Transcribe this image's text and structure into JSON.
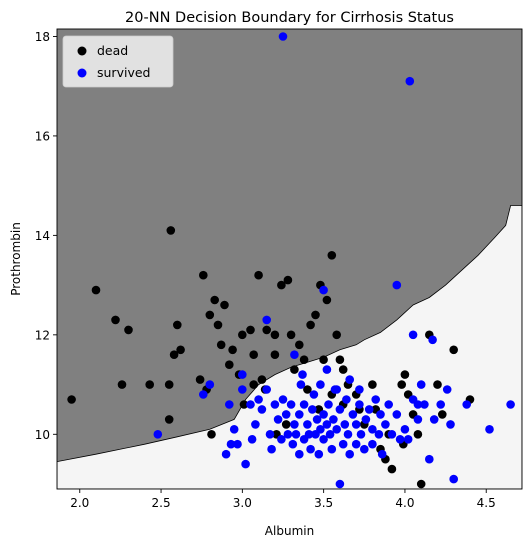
{
  "chart_data": {
    "type": "scatter",
    "title": "20-NN Decision Boundary for Cirrhosis Status",
    "xlabel": "Albumin",
    "ylabel": "Prothrombin",
    "xlim": [
      1.86,
      4.72
    ],
    "ylim": [
      8.9,
      18.15
    ],
    "xticks": [
      "2.0",
      "2.5",
      "3.0",
      "3.5",
      "4.0",
      "4.5"
    ],
    "xtick_values": [
      2.0,
      2.5,
      3.0,
      3.5,
      4.0,
      4.5
    ],
    "yticks": [
      "10",
      "12",
      "14",
      "16",
      "18"
    ],
    "ytick_values": [
      10,
      12,
      14,
      16,
      18
    ],
    "grid": false,
    "legend_position": "top-left",
    "region_colors": {
      "dead": "#808080",
      "survived": "#f5f5f5"
    },
    "boundary": [
      [
        1.86,
        9.45
      ],
      [
        2.1,
        9.6
      ],
      [
        2.4,
        9.8
      ],
      [
        2.6,
        9.95
      ],
      [
        2.8,
        10.1
      ],
      [
        2.95,
        10.3
      ],
      [
        3.02,
        10.7
      ],
      [
        3.1,
        11.0
      ],
      [
        3.2,
        11.2
      ],
      [
        3.3,
        11.35
      ],
      [
        3.4,
        11.45
      ],
      [
        3.5,
        11.55
      ],
      [
        3.6,
        11.7
      ],
      [
        3.7,
        11.8
      ],
      [
        3.75,
        11.9
      ],
      [
        3.85,
        12.05
      ],
      [
        3.95,
        12.3
      ],
      [
        4.05,
        12.6
      ],
      [
        4.15,
        12.75
      ],
      [
        4.25,
        13.0
      ],
      [
        4.35,
        13.3
      ],
      [
        4.45,
        13.6
      ],
      [
        4.55,
        13.95
      ],
      [
        4.62,
        14.2
      ],
      [
        4.65,
        14.6
      ],
      [
        4.72,
        14.6
      ]
    ],
    "series": [
      {
        "name": "dead",
        "color": "#000000",
        "points": [
          [
            1.95,
            10.7
          ],
          [
            2.1,
            12.9
          ],
          [
            2.22,
            12.3
          ],
          [
            2.26,
            11.0
          ],
          [
            2.3,
            12.1
          ],
          [
            2.43,
            11.0
          ],
          [
            2.55,
            11.0
          ],
          [
            2.55,
            10.3
          ],
          [
            2.56,
            14.1
          ],
          [
            2.58,
            11.6
          ],
          [
            2.6,
            12.2
          ],
          [
            2.62,
            11.7
          ],
          [
            2.74,
            11.1
          ],
          [
            2.76,
            13.2
          ],
          [
            2.78,
            10.9
          ],
          [
            2.8,
            12.4
          ],
          [
            2.81,
            10.0
          ],
          [
            2.83,
            12.7
          ],
          [
            2.85,
            12.2
          ],
          [
            2.87,
            11.8
          ],
          [
            2.89,
            12.6
          ],
          [
            2.92,
            11.4
          ],
          [
            2.94,
            11.7
          ],
          [
            2.98,
            11.2
          ],
          [
            3.0,
            12.0
          ],
          [
            3.01,
            10.6
          ],
          [
            3.05,
            12.1
          ],
          [
            3.07,
            11.6
          ],
          [
            3.1,
            13.2
          ],
          [
            3.12,
            11.1
          ],
          [
            3.15,
            12.1
          ],
          [
            3.2,
            11.6
          ],
          [
            3.2,
            12.0
          ],
          [
            3.21,
            10.0
          ],
          [
            3.24,
            13.0
          ],
          [
            3.28,
            13.1
          ],
          [
            3.3,
            12.0
          ],
          [
            3.32,
            11.3
          ],
          [
            3.35,
            11.8
          ],
          [
            3.38,
            11.5
          ],
          [
            3.42,
            12.2
          ],
          [
            3.45,
            12.4
          ],
          [
            3.48,
            13.0
          ],
          [
            3.5,
            11.5
          ],
          [
            3.52,
            12.7
          ],
          [
            3.55,
            13.6
          ],
          [
            3.58,
            12.0
          ],
          [
            3.6,
            11.5
          ],
          [
            3.62,
            11.3
          ],
          [
            3.65,
            11.0
          ],
          [
            3.7,
            10.8
          ],
          [
            3.72,
            10.5
          ],
          [
            3.75,
            10.2
          ],
          [
            3.8,
            11.0
          ],
          [
            3.82,
            10.5
          ],
          [
            3.85,
            9.7
          ],
          [
            3.88,
            9.5
          ],
          [
            3.9,
            10.0
          ],
          [
            3.92,
            9.3
          ],
          [
            3.98,
            11.0
          ],
          [
            3.99,
            9.8
          ],
          [
            4.0,
            11.2
          ],
          [
            4.02,
            10.8
          ],
          [
            4.05,
            10.4
          ],
          [
            4.08,
            10.0
          ],
          [
            4.1,
            9.0
          ],
          [
            4.15,
            12.0
          ],
          [
            4.2,
            11.0
          ],
          [
            4.23,
            10.4
          ],
          [
            4.3,
            11.7
          ],
          [
            4.4,
            10.7
          ],
          [
            3.07,
            11.0
          ],
          [
            3.14,
            10.9
          ],
          [
            3.4,
            10.9
          ],
          [
            3.47,
            10.5
          ],
          [
            3.55,
            10.8
          ],
          [
            3.62,
            10.6
          ],
          [
            3.27,
            10.2
          ]
        ]
      },
      {
        "name": "survived",
        "color": "#0000ff",
        "points": [
          [
            3.25,
            18.0
          ],
          [
            4.03,
            17.1
          ],
          [
            3.95,
            13.0
          ],
          [
            3.5,
            12.9
          ],
          [
            3.15,
            12.3
          ],
          [
            3.32,
            11.6
          ],
          [
            4.05,
            12.0
          ],
          [
            4.17,
            11.9
          ],
          [
            2.48,
            10.0
          ],
          [
            2.76,
            10.8
          ],
          [
            2.8,
            11.0
          ],
          [
            2.92,
            10.6
          ],
          [
            2.95,
            10.1
          ],
          [
            2.93,
            9.8
          ],
          [
            2.9,
            9.6
          ],
          [
            2.97,
            9.8
          ],
          [
            3.0,
            10.9
          ],
          [
            3.0,
            11.2
          ],
          [
            3.02,
            9.4
          ],
          [
            3.05,
            10.6
          ],
          [
            3.06,
            9.9
          ],
          [
            3.08,
            10.2
          ],
          [
            3.1,
            10.7
          ],
          [
            3.12,
            10.5
          ],
          [
            3.15,
            10.9
          ],
          [
            3.17,
            10.0
          ],
          [
            3.18,
            9.7
          ],
          [
            3.2,
            10.6
          ],
          [
            3.22,
            10.3
          ],
          [
            3.24,
            9.9
          ],
          [
            3.25,
            10.7
          ],
          [
            3.27,
            10.4
          ],
          [
            3.28,
            10.0
          ],
          [
            3.3,
            10.6
          ],
          [
            3.31,
            9.8
          ],
          [
            3.32,
            10.2
          ],
          [
            3.33,
            10.0
          ],
          [
            3.35,
            10.4
          ],
          [
            3.35,
            9.6
          ],
          [
            3.36,
            11.0
          ],
          [
            3.38,
            10.6
          ],
          [
            3.38,
            9.9
          ],
          [
            3.4,
            10.2
          ],
          [
            3.41,
            10.0
          ],
          [
            3.42,
            9.7
          ],
          [
            3.43,
            10.5
          ],
          [
            3.44,
            10.8
          ],
          [
            3.45,
            10.0
          ],
          [
            3.46,
            10.3
          ],
          [
            3.47,
            9.6
          ],
          [
            3.48,
            11.0
          ],
          [
            3.48,
            10.1
          ],
          [
            3.5,
            10.4
          ],
          [
            3.5,
            9.9
          ],
          [
            3.52,
            10.2
          ],
          [
            3.53,
            10.6
          ],
          [
            3.54,
            10.0
          ],
          [
            3.55,
            9.7
          ],
          [
            3.56,
            10.3
          ],
          [
            3.57,
            10.9
          ],
          [
            3.58,
            10.1
          ],
          [
            3.6,
            10.5
          ],
          [
            3.6,
            9.0
          ],
          [
            3.62,
            9.8
          ],
          [
            3.63,
            10.2
          ],
          [
            3.64,
            10.7
          ],
          [
            3.65,
            10.0
          ],
          [
            3.66,
            9.6
          ],
          [
            3.68,
            10.4
          ],
          [
            3.7,
            10.2
          ],
          [
            3.7,
            9.8
          ],
          [
            3.72,
            10.6
          ],
          [
            3.73,
            10.0
          ],
          [
            3.75,
            9.7
          ],
          [
            3.76,
            10.3
          ],
          [
            3.78,
            10.5
          ],
          [
            3.8,
            10.1
          ],
          [
            3.8,
            9.8
          ],
          [
            3.82,
            10.7
          ],
          [
            3.84,
            10.0
          ],
          [
            3.85,
            10.4
          ],
          [
            3.86,
            9.6
          ],
          [
            3.88,
            10.2
          ],
          [
            3.9,
            10.6
          ],
          [
            3.92,
            10.0
          ],
          [
            3.95,
            10.4
          ],
          [
            3.97,
            9.9
          ],
          [
            4.0,
            10.1
          ],
          [
            4.02,
            9.9
          ],
          [
            4.05,
            10.7
          ],
          [
            4.08,
            10.3
          ],
          [
            4.12,
            10.6
          ],
          [
            4.15,
            9.5
          ],
          [
            4.18,
            10.3
          ],
          [
            4.22,
            10.6
          ],
          [
            4.26,
            10.9
          ],
          [
            4.28,
            10.2
          ],
          [
            4.3,
            9.1
          ],
          [
            4.38,
            10.6
          ],
          [
            4.52,
            10.1
          ],
          [
            4.65,
            10.6
          ],
          [
            3.37,
            11.2
          ],
          [
            3.52,
            11.3
          ],
          [
            3.58,
            10.9
          ],
          [
            3.66,
            11.1
          ],
          [
            3.72,
            10.9
          ],
          [
            4.1,
            11.0
          ],
          [
            4.08,
            10.6
          ]
        ]
      }
    ]
  }
}
